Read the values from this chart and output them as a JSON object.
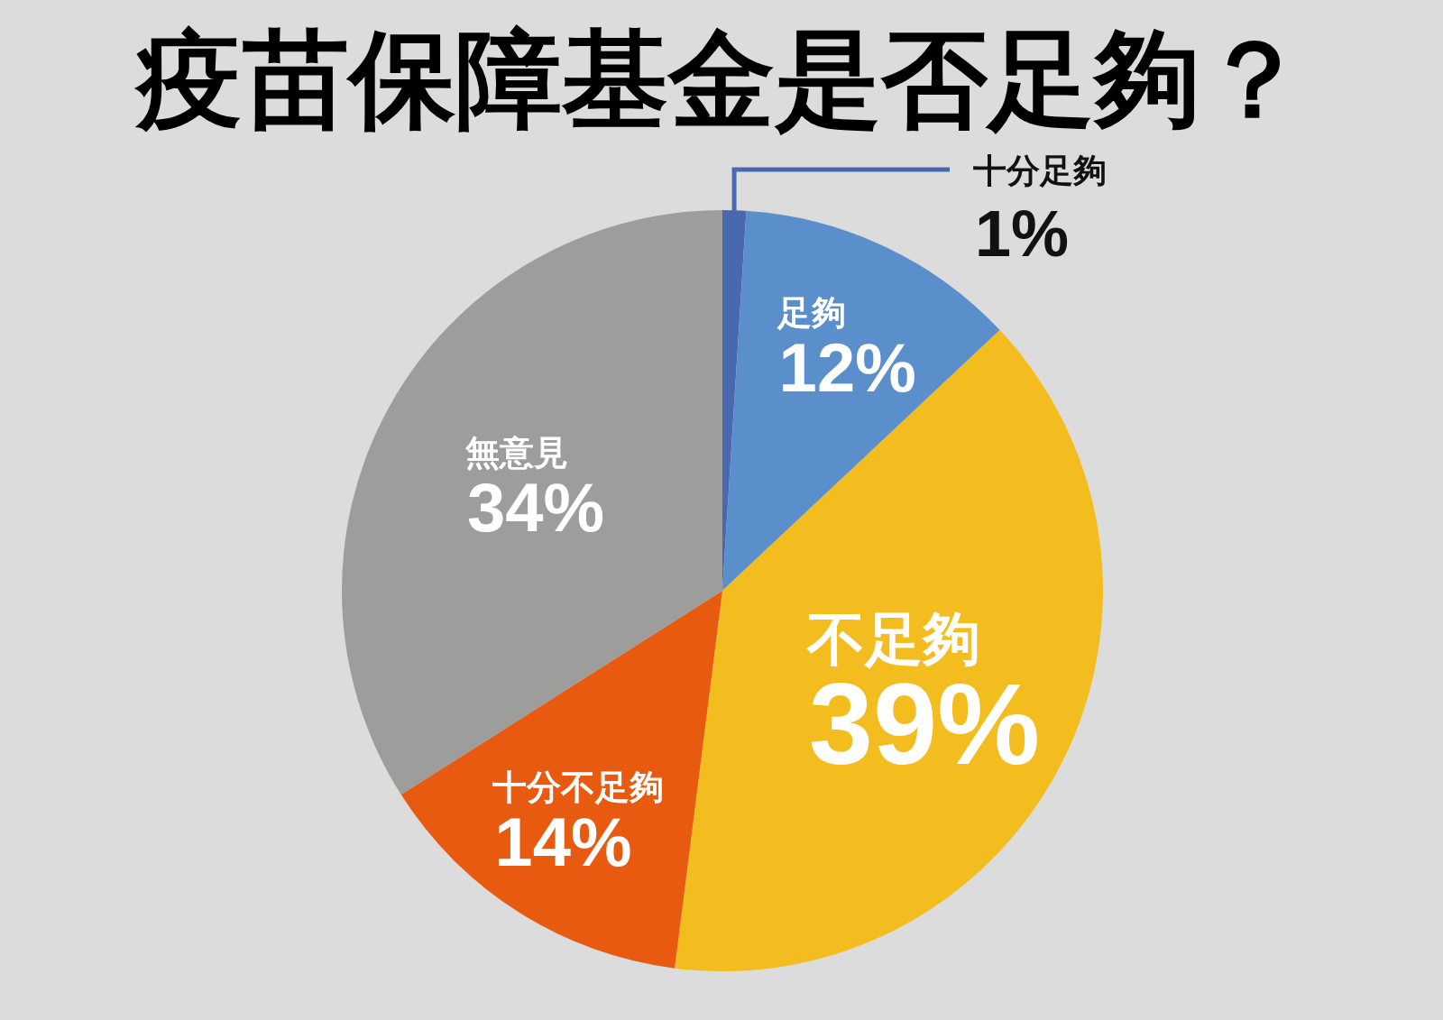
{
  "chart_data": {
    "type": "pie",
    "title": "疫苗保障基金是否足夠？",
    "categories": [
      "十分足夠",
      "足夠",
      "不足夠",
      "十分不足夠",
      "無意見"
    ],
    "values": [
      1,
      12,
      39,
      14,
      34
    ],
    "value_labels": [
      "1%",
      "12%",
      "39%",
      "14%",
      "34%"
    ],
    "colors": [
      "#4a68b0",
      "#5b8fcc",
      "#f3bd1f",
      "#e85a10",
      "#9d9d9b"
    ]
  }
}
